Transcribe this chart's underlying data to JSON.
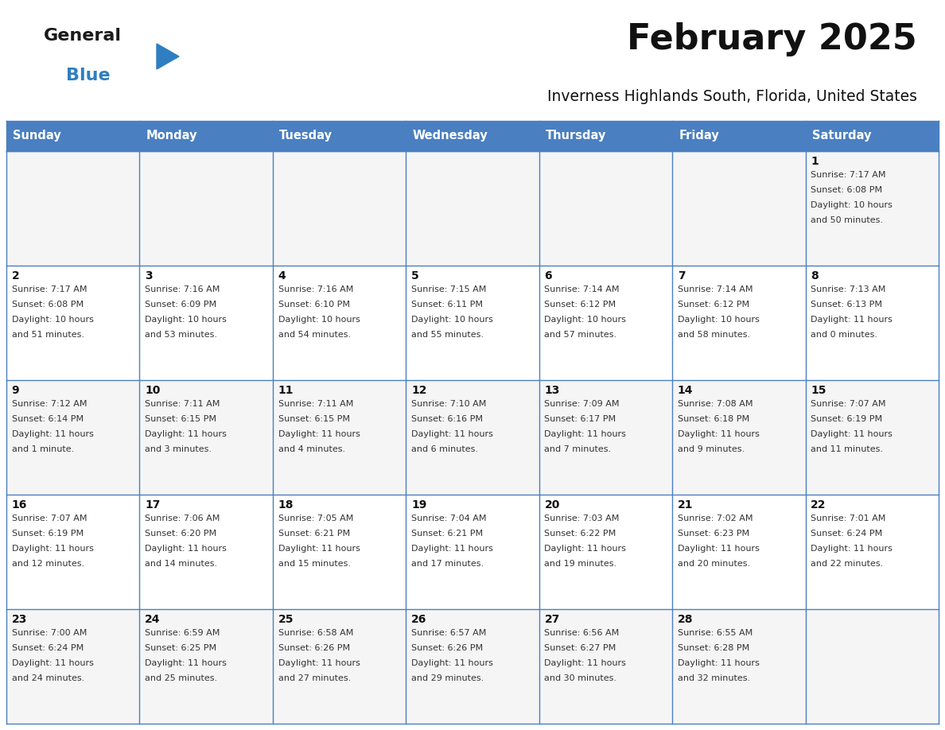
{
  "title": "February 2025",
  "subtitle": "Inverness Highlands South, Florida, United States",
  "header_bg": "#4a7fc1",
  "header_text_color": "#FFFFFF",
  "cell_border_color": "#4a7fc1",
  "row_bg_even": "#f5f5f5",
  "row_bg_odd": "#ffffff",
  "white_bg": "#FFFFFF",
  "days_of_week": [
    "Sunday",
    "Monday",
    "Tuesday",
    "Wednesday",
    "Thursday",
    "Friday",
    "Saturday"
  ],
  "title_color": "#111111",
  "subtitle_color": "#111111",
  "cell_text_color": "#333333",
  "day_num_color": "#111111",
  "logo_general_color": "#1a1a1a",
  "logo_blue_color": "#2E7EC1",
  "calendar_data": [
    [
      null,
      null,
      null,
      null,
      null,
      null,
      {
        "day": 1,
        "sunrise": "7:17 AM",
        "sunset": "6:08 PM",
        "daylight": "10 hours\nand 50 minutes."
      }
    ],
    [
      {
        "day": 2,
        "sunrise": "7:17 AM",
        "sunset": "6:08 PM",
        "daylight": "10 hours\nand 51 minutes."
      },
      {
        "day": 3,
        "sunrise": "7:16 AM",
        "sunset": "6:09 PM",
        "daylight": "10 hours\nand 53 minutes."
      },
      {
        "day": 4,
        "sunrise": "7:16 AM",
        "sunset": "6:10 PM",
        "daylight": "10 hours\nand 54 minutes."
      },
      {
        "day": 5,
        "sunrise": "7:15 AM",
        "sunset": "6:11 PM",
        "daylight": "10 hours\nand 55 minutes."
      },
      {
        "day": 6,
        "sunrise": "7:14 AM",
        "sunset": "6:12 PM",
        "daylight": "10 hours\nand 57 minutes."
      },
      {
        "day": 7,
        "sunrise": "7:14 AM",
        "sunset": "6:12 PM",
        "daylight": "10 hours\nand 58 minutes."
      },
      {
        "day": 8,
        "sunrise": "7:13 AM",
        "sunset": "6:13 PM",
        "daylight": "11 hours\nand 0 minutes."
      }
    ],
    [
      {
        "day": 9,
        "sunrise": "7:12 AM",
        "sunset": "6:14 PM",
        "daylight": "11 hours\nand 1 minute."
      },
      {
        "day": 10,
        "sunrise": "7:11 AM",
        "sunset": "6:15 PM",
        "daylight": "11 hours\nand 3 minutes."
      },
      {
        "day": 11,
        "sunrise": "7:11 AM",
        "sunset": "6:15 PM",
        "daylight": "11 hours\nand 4 minutes."
      },
      {
        "day": 12,
        "sunrise": "7:10 AM",
        "sunset": "6:16 PM",
        "daylight": "11 hours\nand 6 minutes."
      },
      {
        "day": 13,
        "sunrise": "7:09 AM",
        "sunset": "6:17 PM",
        "daylight": "11 hours\nand 7 minutes."
      },
      {
        "day": 14,
        "sunrise": "7:08 AM",
        "sunset": "6:18 PM",
        "daylight": "11 hours\nand 9 minutes."
      },
      {
        "day": 15,
        "sunrise": "7:07 AM",
        "sunset": "6:19 PM",
        "daylight": "11 hours\nand 11 minutes."
      }
    ],
    [
      {
        "day": 16,
        "sunrise": "7:07 AM",
        "sunset": "6:19 PM",
        "daylight": "11 hours\nand 12 minutes."
      },
      {
        "day": 17,
        "sunrise": "7:06 AM",
        "sunset": "6:20 PM",
        "daylight": "11 hours\nand 14 minutes."
      },
      {
        "day": 18,
        "sunrise": "7:05 AM",
        "sunset": "6:21 PM",
        "daylight": "11 hours\nand 15 minutes."
      },
      {
        "day": 19,
        "sunrise": "7:04 AM",
        "sunset": "6:21 PM",
        "daylight": "11 hours\nand 17 minutes."
      },
      {
        "day": 20,
        "sunrise": "7:03 AM",
        "sunset": "6:22 PM",
        "daylight": "11 hours\nand 19 minutes."
      },
      {
        "day": 21,
        "sunrise": "7:02 AM",
        "sunset": "6:23 PM",
        "daylight": "11 hours\nand 20 minutes."
      },
      {
        "day": 22,
        "sunrise": "7:01 AM",
        "sunset": "6:24 PM",
        "daylight": "11 hours\nand 22 minutes."
      }
    ],
    [
      {
        "day": 23,
        "sunrise": "7:00 AM",
        "sunset": "6:24 PM",
        "daylight": "11 hours\nand 24 minutes."
      },
      {
        "day": 24,
        "sunrise": "6:59 AM",
        "sunset": "6:25 PM",
        "daylight": "11 hours\nand 25 minutes."
      },
      {
        "day": 25,
        "sunrise": "6:58 AM",
        "sunset": "6:26 PM",
        "daylight": "11 hours\nand 27 minutes."
      },
      {
        "day": 26,
        "sunrise": "6:57 AM",
        "sunset": "6:26 PM",
        "daylight": "11 hours\nand 29 minutes."
      },
      {
        "day": 27,
        "sunrise": "6:56 AM",
        "sunset": "6:27 PM",
        "daylight": "11 hours\nand 30 minutes."
      },
      {
        "day": 28,
        "sunrise": "6:55 AM",
        "sunset": "6:28 PM",
        "daylight": "11 hours\nand 32 minutes."
      },
      null
    ]
  ]
}
